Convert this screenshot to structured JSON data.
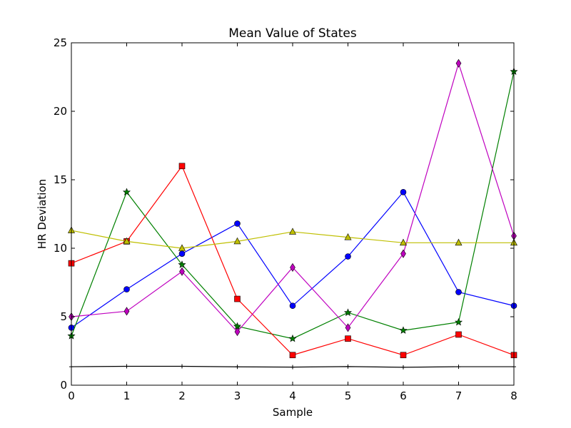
{
  "chart_data": {
    "type": "line",
    "title": "Mean Value of States",
    "xlabel": "Sample",
    "ylabel": "HR Deviation",
    "xlim": [
      0,
      8
    ],
    "ylim": [
      0,
      25
    ],
    "x": [
      0,
      1,
      2,
      3,
      4,
      5,
      6,
      7,
      8
    ],
    "x_ticks": [
      "0",
      "1",
      "2",
      "3",
      "4",
      "5",
      "6",
      "7",
      "8"
    ],
    "y_ticks": [
      {
        "value": 0,
        "label": "0"
      },
      {
        "value": 5,
        "label": "5"
      },
      {
        "value": 10,
        "label": "10"
      },
      {
        "value": 15,
        "label": "15"
      },
      {
        "value": 20,
        "label": "20"
      },
      {
        "value": 25,
        "label": "25"
      }
    ],
    "grid": false,
    "legend": "none",
    "series": [
      {
        "color": "#0000ff",
        "marker": "circle",
        "values": [
          4.2,
          7.0,
          9.6,
          11.8,
          5.8,
          9.4,
          14.1,
          6.8,
          5.8
        ]
      },
      {
        "color": "#008000",
        "marker": "star",
        "values": [
          3.6,
          14.1,
          8.8,
          4.3,
          3.4,
          5.3,
          4.0,
          4.6,
          22.9
        ]
      },
      {
        "color": "#ff0000",
        "marker": "square",
        "values": [
          8.9,
          10.5,
          16.0,
          6.3,
          2.2,
          3.4,
          2.2,
          3.7,
          2.2
        ]
      },
      {
        "color": "#bf00bf",
        "marker": "diamond",
        "values": [
          5.0,
          5.4,
          8.3,
          3.9,
          8.6,
          4.2,
          9.6,
          23.5,
          10.9
        ]
      },
      {
        "color": "#bfbf00",
        "marker": "triangle",
        "values": [
          11.3,
          10.5,
          10.0,
          10.5,
          11.2,
          10.8,
          10.4,
          10.4,
          10.4
        ]
      },
      {
        "color": "#000000",
        "marker": "plus",
        "values": [
          1.35,
          1.38,
          1.38,
          1.34,
          1.32,
          1.36,
          1.31,
          1.35,
          1.35
        ]
      }
    ]
  }
}
